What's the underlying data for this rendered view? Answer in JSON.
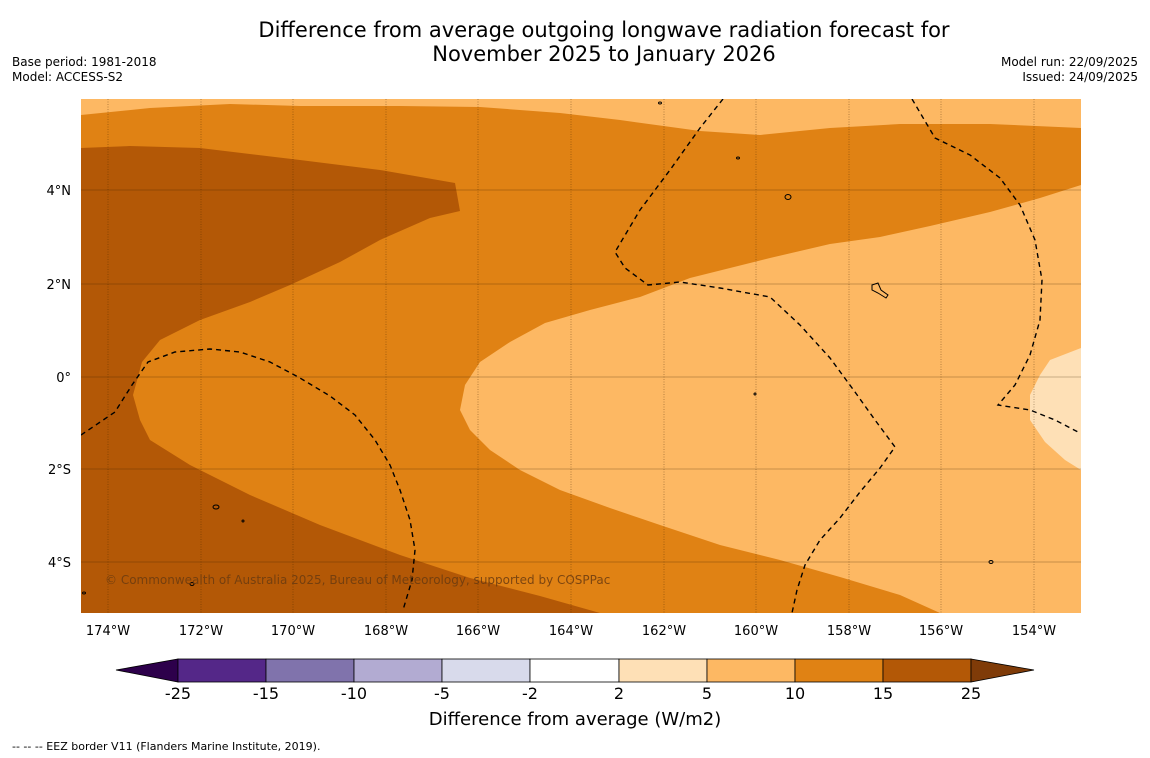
{
  "title": {
    "line1": "Difference from average outgoing longwave radiation forecast for",
    "line2": "November 2025 to January 2026"
  },
  "meta_left": {
    "base_period": "Base period: 1981-2018",
    "model": "Model: ACCESS-S2"
  },
  "meta_right": {
    "model_run": "Model run: 22/09/2025",
    "issued": "Issued: 24/09/2025"
  },
  "map": {
    "copyright": "© Commonwealth of Australia 2025, Bureau of Meteorology, supported by COSPPac",
    "lat_labels": [
      "4°N",
      "2°N",
      "0°",
      "2°S",
      "4°S"
    ],
    "lon_labels": [
      "174°W",
      "172°W",
      "170°W",
      "168°W",
      "166°W",
      "164°W",
      "162°W",
      "160°W",
      "158°W",
      "156°W",
      "154°W"
    ]
  },
  "colorbar": {
    "title": "Difference from average (W/m2)",
    "tick_labels": [
      "-25",
      "-15",
      "-10",
      "-5",
      "-2",
      "2",
      "5",
      "10",
      "15",
      "25"
    ],
    "colors": {
      "below_min": "#2d004b",
      "c_25_15": "#542788",
      "c_15_10": "#8073ac",
      "c_10_5": "#b2abd2",
      "c_5_2": "#d8daeb",
      "c_2_2": "#ffffff",
      "c2_5": "#fee0b6",
      "c5_10": "#fdb863",
      "c10_15": "#e08214",
      "c15_25": "#b35806",
      "above_max": "#7f3b08"
    }
  },
  "footnote": "--  --  -- EEZ border V11 (Flanders Marine Institute, 2019)."
}
